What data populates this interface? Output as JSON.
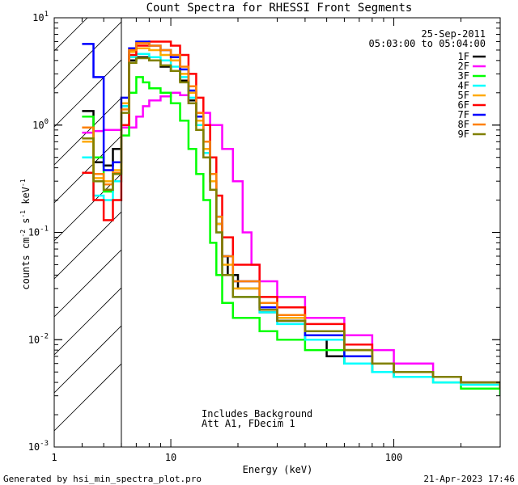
{
  "chart_data": {
    "type": "line",
    "title": "Count Spectra for RHESSI Front Segments",
    "xlabel": "Energy (keV)",
    "ylabel_parts": {
      "pre": "counts cm",
      "exp1": "-2",
      "mid": " s",
      "exp2": "-1",
      "post": " keV",
      "exp3": "-1"
    },
    "xscale": "log",
    "yscale": "log",
    "xlim": [
      3.0,
      300.0
    ],
    "ylim": [
      0.001,
      10.0
    ],
    "x_ticks": [
      {
        "value": 10,
        "label": "10"
      },
      {
        "value": 100,
        "label": "100"
      }
    ],
    "y_ticks": [
      {
        "value": 0.001,
        "base": "10",
        "exp": "-3"
      },
      {
        "value": 0.01,
        "base": "10",
        "exp": "-2"
      },
      {
        "value": 0.1,
        "base": "10",
        "exp": "-1"
      },
      {
        "value": 1,
        "base": "10",
        "exp": "0"
      },
      {
        "value": 10,
        "base": "10",
        "exp": "1"
      }
    ],
    "corner_x_label": "1",
    "date": "25-Sep-2011",
    "time_range": "05:03:00 to 05:04:00",
    "threshold_energy": 6.0,
    "annotations": [
      "Includes Background",
      "Att A1, FDecim 1"
    ],
    "series": [
      {
        "name": "1F",
        "color": "#000000",
        "points": [
          [
            4,
            1.35
          ],
          [
            4.5,
            0.45
          ],
          [
            5,
            0.42
          ],
          [
            5.5,
            0.6
          ],
          [
            6,
            1.5
          ],
          [
            6.5,
            4.0
          ],
          [
            7,
            4.3
          ],
          [
            8,
            4.0
          ],
          [
            9,
            3.5
          ],
          [
            10,
            3.2
          ],
          [
            11,
            2.6
          ],
          [
            12,
            1.7
          ],
          [
            13,
            1.0
          ],
          [
            14,
            0.6
          ],
          [
            15,
            0.3
          ],
          [
            16,
            0.12
          ],
          [
            17,
            0.06
          ],
          [
            18,
            0.04
          ],
          [
            20,
            0.03
          ],
          [
            25,
            0.018
          ],
          [
            30,
            0.015
          ],
          [
            40,
            0.01
          ],
          [
            50,
            0.007
          ],
          [
            60,
            0.006
          ],
          [
            80,
            0.005
          ],
          [
            100,
            0.0045
          ],
          [
            150,
            0.0045
          ],
          [
            200,
            0.004
          ],
          [
            300,
            0.0035
          ]
        ]
      },
      {
        "name": "2F",
        "color": "#ff00ff",
        "points": [
          [
            4,
            0.85
          ],
          [
            4.5,
            0.88
          ],
          [
            5,
            0.9
          ],
          [
            6,
            0.95
          ],
          [
            7,
            1.2
          ],
          [
            7.5,
            1.5
          ],
          [
            8,
            1.7
          ],
          [
            9,
            1.85
          ],
          [
            10,
            2.0
          ],
          [
            11,
            1.9
          ],
          [
            12,
            1.6
          ],
          [
            13,
            1.3
          ],
          [
            15,
            1.0
          ],
          [
            17,
            0.6
          ],
          [
            19,
            0.3
          ],
          [
            21,
            0.1
          ],
          [
            23,
            0.05
          ],
          [
            25,
            0.035
          ],
          [
            30,
            0.025
          ],
          [
            40,
            0.016
          ],
          [
            60,
            0.011
          ],
          [
            80,
            0.008
          ],
          [
            100,
            0.006
          ],
          [
            150,
            0.0045
          ],
          [
            200,
            0.004
          ],
          [
            300,
            0.0035
          ]
        ]
      },
      {
        "name": "3F",
        "color": "#00ff00",
        "points": [
          [
            4,
            1.2
          ],
          [
            4.5,
            0.5
          ],
          [
            5,
            0.24
          ],
          [
            5.5,
            0.3
          ],
          [
            6,
            0.8
          ],
          [
            6.5,
            2.0
          ],
          [
            7,
            2.8
          ],
          [
            7.5,
            2.5
          ],
          [
            8,
            2.2
          ],
          [
            9,
            2.0
          ],
          [
            10,
            1.6
          ],
          [
            11,
            1.1
          ],
          [
            12,
            0.6
          ],
          [
            13,
            0.35
          ],
          [
            14,
            0.2
          ],
          [
            15,
            0.08
          ],
          [
            16,
            0.04
          ],
          [
            17,
            0.022
          ],
          [
            19,
            0.016
          ],
          [
            25,
            0.012
          ],
          [
            30,
            0.01
          ],
          [
            40,
            0.008
          ],
          [
            60,
            0.006
          ],
          [
            80,
            0.005
          ],
          [
            100,
            0.0045
          ],
          [
            150,
            0.004
          ],
          [
            200,
            0.0035
          ],
          [
            300,
            0.003
          ]
        ]
      },
      {
        "name": "4F",
        "color": "#00ffff",
        "points": [
          [
            4,
            0.5
          ],
          [
            4.5,
            0.22
          ],
          [
            5,
            0.2
          ],
          [
            5.5,
            0.3
          ],
          [
            6,
            1.5
          ],
          [
            6.5,
            4.3
          ],
          [
            7,
            4.6
          ],
          [
            8,
            4.3
          ],
          [
            9,
            4.0
          ],
          [
            10,
            3.5
          ],
          [
            11,
            2.8
          ],
          [
            12,
            1.8
          ],
          [
            13,
            1.0
          ],
          [
            14,
            0.55
          ],
          [
            15,
            0.25
          ],
          [
            16,
            0.1
          ],
          [
            17,
            0.04
          ],
          [
            19,
            0.025
          ],
          [
            25,
            0.018
          ],
          [
            30,
            0.014
          ],
          [
            40,
            0.01
          ],
          [
            60,
            0.006
          ],
          [
            80,
            0.005
          ],
          [
            100,
            0.0045
          ],
          [
            150,
            0.004
          ],
          [
            200,
            0.0038
          ],
          [
            300,
            0.0035
          ]
        ]
      },
      {
        "name": "5F",
        "color": "#ffaa00",
        "points": [
          [
            4,
            0.7
          ],
          [
            4.5,
            0.32
          ],
          [
            5,
            0.3
          ],
          [
            5.5,
            0.38
          ],
          [
            6,
            1.6
          ],
          [
            6.5,
            4.8
          ],
          [
            7,
            5.2
          ],
          [
            8,
            5.0
          ],
          [
            9,
            4.5
          ],
          [
            10,
            4.0
          ],
          [
            11,
            3.0
          ],
          [
            12,
            2.0
          ],
          [
            13,
            1.1
          ],
          [
            14,
            0.6
          ],
          [
            15,
            0.3
          ],
          [
            16,
            0.12
          ],
          [
            17,
            0.05
          ],
          [
            19,
            0.03
          ],
          [
            25,
            0.02
          ],
          [
            30,
            0.016
          ],
          [
            40,
            0.012
          ],
          [
            60,
            0.008
          ],
          [
            80,
            0.006
          ],
          [
            100,
            0.005
          ],
          [
            150,
            0.0045
          ],
          [
            200,
            0.004
          ],
          [
            300,
            0.0035
          ]
        ]
      },
      {
        "name": "6F",
        "color": "#ff0000",
        "points": [
          [
            4,
            0.36
          ],
          [
            4.5,
            0.2
          ],
          [
            5,
            0.13
          ],
          [
            5.5,
            0.2
          ],
          [
            6,
            1.0
          ],
          [
            6.5,
            4.5
          ],
          [
            7,
            5.5
          ],
          [
            8,
            6.0
          ],
          [
            9,
            6.0
          ],
          [
            10,
            5.5
          ],
          [
            11,
            4.5
          ],
          [
            12,
            3.0
          ],
          [
            13,
            1.8
          ],
          [
            14,
            1.0
          ],
          [
            15,
            0.5
          ],
          [
            16,
            0.22
          ],
          [
            17,
            0.09
          ],
          [
            19,
            0.05
          ],
          [
            25,
            0.025
          ],
          [
            30,
            0.02
          ],
          [
            40,
            0.014
          ],
          [
            60,
            0.009
          ],
          [
            80,
            0.006
          ],
          [
            100,
            0.005
          ],
          [
            150,
            0.0045
          ],
          [
            200,
            0.004
          ],
          [
            300,
            0.0035
          ]
        ]
      },
      {
        "name": "7F",
        "color": "#0000ff",
        "points": [
          [
            4,
            5.7
          ],
          [
            4.5,
            2.8
          ],
          [
            5,
            0.38
          ],
          [
            5.5,
            0.45
          ],
          [
            6,
            1.8
          ],
          [
            6.5,
            5.2
          ],
          [
            7,
            6.0
          ],
          [
            8,
            5.5
          ],
          [
            9,
            5.0
          ],
          [
            10,
            4.3
          ],
          [
            11,
            3.3
          ],
          [
            12,
            2.1
          ],
          [
            13,
            1.2
          ],
          [
            14,
            0.7
          ],
          [
            15,
            0.35
          ],
          [
            16,
            0.14
          ],
          [
            17,
            0.06
          ],
          [
            19,
            0.035
          ],
          [
            25,
            0.02
          ],
          [
            30,
            0.015
          ],
          [
            40,
            0.011
          ],
          [
            60,
            0.007
          ],
          [
            80,
            0.006
          ],
          [
            100,
            0.005
          ],
          [
            150,
            0.0045
          ],
          [
            200,
            0.004
          ],
          [
            300,
            0.0035
          ]
        ]
      },
      {
        "name": "8F",
        "color": "#ff8000",
        "points": [
          [
            4,
            0.95
          ],
          [
            4.5,
            0.35
          ],
          [
            5,
            0.28
          ],
          [
            5.5,
            0.36
          ],
          [
            6,
            1.4
          ],
          [
            6.5,
            5.0
          ],
          [
            7,
            5.8
          ],
          [
            8,
            5.5
          ],
          [
            9,
            5.0
          ],
          [
            10,
            4.5
          ],
          [
            11,
            3.5
          ],
          [
            12,
            2.3
          ],
          [
            13,
            1.3
          ],
          [
            14,
            0.7
          ],
          [
            15,
            0.35
          ],
          [
            16,
            0.14
          ],
          [
            17,
            0.06
          ],
          [
            19,
            0.035
          ],
          [
            25,
            0.022
          ],
          [
            30,
            0.017
          ],
          [
            40,
            0.012
          ],
          [
            60,
            0.008
          ],
          [
            80,
            0.006
          ],
          [
            100,
            0.005
          ],
          [
            150,
            0.0045
          ],
          [
            200,
            0.004
          ],
          [
            300,
            0.0035
          ]
        ]
      },
      {
        "name": "9F",
        "color": "#808000",
        "points": [
          [
            4,
            0.75
          ],
          [
            4.5,
            0.3
          ],
          [
            5,
            0.25
          ],
          [
            5.5,
            0.35
          ],
          [
            6,
            1.3
          ],
          [
            6.5,
            3.8
          ],
          [
            7,
            4.2
          ],
          [
            8,
            4.0
          ],
          [
            9,
            3.6
          ],
          [
            10,
            3.2
          ],
          [
            11,
            2.5
          ],
          [
            12,
            1.6
          ],
          [
            13,
            0.9
          ],
          [
            14,
            0.5
          ],
          [
            15,
            0.25
          ],
          [
            16,
            0.1
          ],
          [
            17,
            0.04
          ],
          [
            19,
            0.025
          ],
          [
            25,
            0.019
          ],
          [
            30,
            0.015
          ],
          [
            40,
            0.012
          ],
          [
            60,
            0.008
          ],
          [
            80,
            0.006
          ],
          [
            100,
            0.005
          ],
          [
            150,
            0.0045
          ],
          [
            200,
            0.004
          ],
          [
            300,
            0.0035
          ]
        ]
      }
    ]
  },
  "footer": {
    "left": "Generated by hsi_min_spectra_plot.pro",
    "right": "21-Apr-2023 17:46"
  }
}
